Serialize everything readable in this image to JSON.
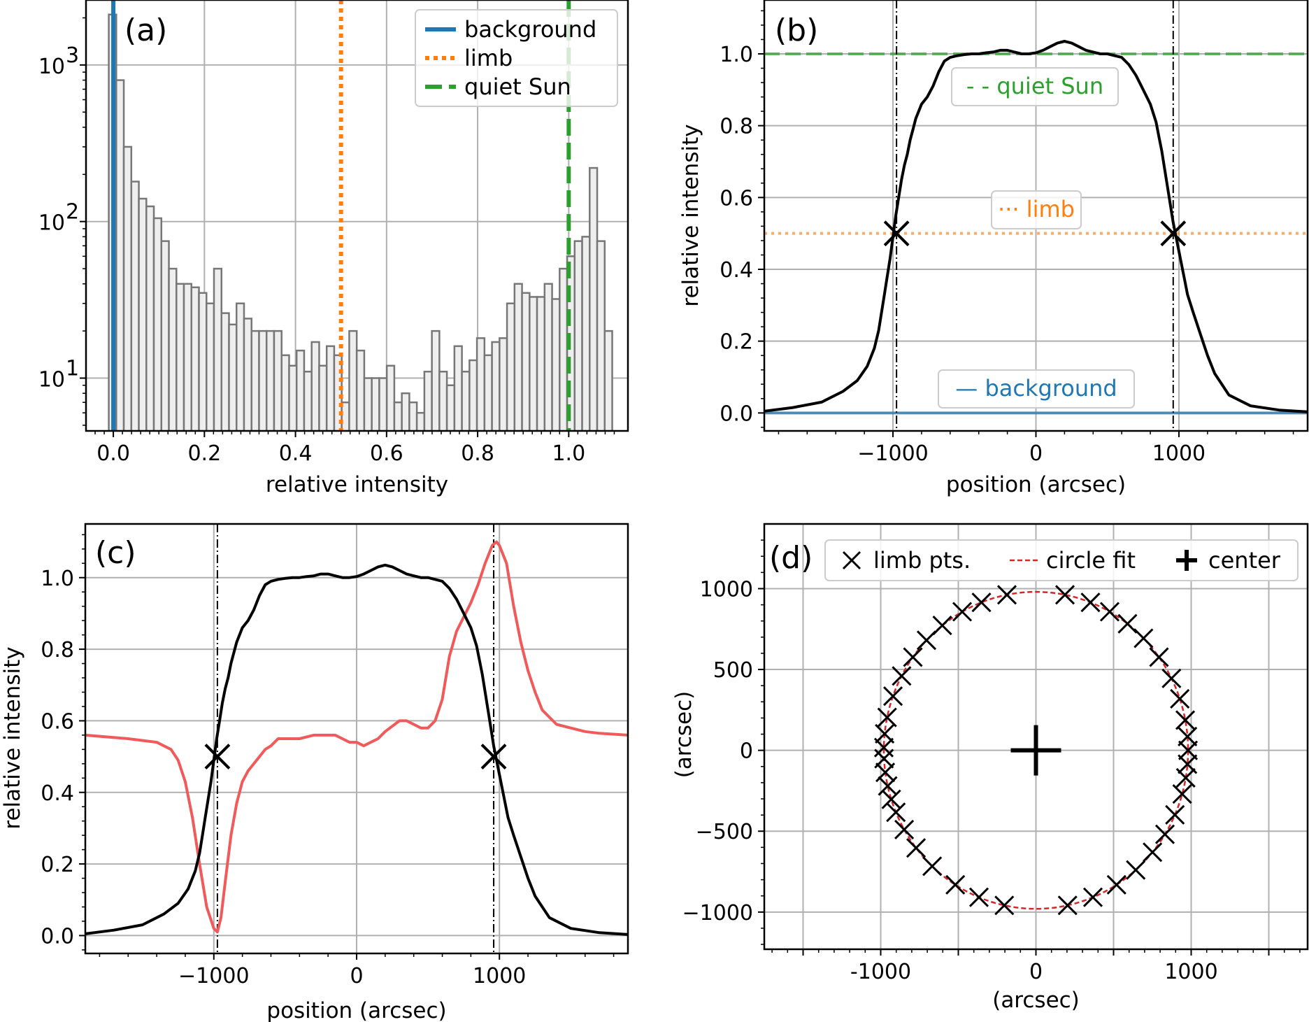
{
  "colors": {
    "background": "#1f77b4",
    "limb": "#ff7f0e",
    "quiet_sun": "#2ca02c",
    "gradient": "#f05a5a",
    "circle_fit": "#d62728",
    "profile": "#000000",
    "hist_fill": "#eeeeee",
    "hist_edge": "#777777"
  },
  "chart_data": [
    {
      "panel": "(a)",
      "type": "bar",
      "subtype": "histogram",
      "xlabel": "relative intensity",
      "ylabel": "",
      "yscale": "log",
      "xlim": [
        -0.06,
        1.13
      ],
      "ylim": [
        4.6,
        2600
      ],
      "xticks": [
        0.0,
        0.2,
        0.4,
        0.6,
        0.8,
        1.0
      ],
      "xtick_labels": [
        "0.0",
        "0.2",
        "0.4",
        "0.6",
        "0.8",
        "1.0"
      ],
      "yticks": [
        10,
        100,
        1000
      ],
      "ytick_labels": [
        "10",
        "10",
        "10"
      ],
      "ytick_exponents": [
        "1",
        "2",
        "3"
      ],
      "bin_start": -0.01,
      "bin_width": 0.0165,
      "counts": [
        2100,
        800,
        300,
        180,
        140,
        125,
        105,
        75,
        50,
        40,
        40,
        38,
        35,
        30,
        50,
        26,
        22,
        30,
        24,
        20,
        20,
        20,
        20,
        14,
        12,
        15,
        11,
        17,
        12,
        16,
        14,
        7,
        20,
        15,
        10,
        10,
        10,
        12,
        7,
        8,
        7,
        6,
        11,
        20,
        11,
        9,
        16,
        11,
        13,
        18,
        14,
        17,
        18,
        30,
        40,
        35,
        33,
        33,
        40,
        32,
        50,
        60,
        75,
        80,
        220,
        75,
        20
      ],
      "vlines": [
        {
          "x": 0.0,
          "label": "background",
          "style": "solid"
        },
        {
          "x": 0.5,
          "label": "limb",
          "style": "dotted"
        },
        {
          "x": 1.0,
          "label": "quiet Sun",
          "style": "dashed"
        }
      ],
      "legend": [
        "background",
        "limb",
        "quiet Sun"
      ],
      "legend_position": "top-right"
    },
    {
      "panel": "(b)",
      "type": "line",
      "xlabel": "position (arcsec)",
      "ylabel": "relative intensity",
      "xlim": [
        -1900,
        1900
      ],
      "ylim": [
        -0.05,
        1.15
      ],
      "xticks": [
        -1000,
        0,
        1000
      ],
      "xtick_labels": [
        "−1000",
        "0",
        "1000"
      ],
      "yticks": [
        0.0,
        0.2,
        0.4,
        0.6,
        0.8,
        1.0
      ],
      "ytick_labels": [
        "0.0",
        "0.2",
        "0.4",
        "0.6",
        "0.8",
        "1.0"
      ],
      "profile_x": [
        -1900,
        -1700,
        -1500,
        -1350,
        -1250,
        -1180,
        -1130,
        -1100,
        -1080,
        -1060,
        -1040,
        -1020,
        -1000,
        -980,
        -960,
        -940,
        -920,
        -900,
        -880,
        -860,
        -840,
        -800,
        -760,
        -720,
        -680,
        -640,
        -600,
        -550,
        -500,
        -450,
        -400,
        -350,
        -300,
        -250,
        -200,
        -150,
        -100,
        -50,
        0,
        50,
        100,
        150,
        200,
        250,
        300,
        350,
        400,
        450,
        500,
        550,
        600,
        650,
        700,
        750,
        800,
        840,
        860,
        880,
        900,
        920,
        940,
        960,
        980,
        1000,
        1020,
        1040,
        1060,
        1100,
        1150,
        1200,
        1250,
        1350,
        1500,
        1700,
        1900
      ],
      "profile_y": [
        0.005,
        0.015,
        0.03,
        0.06,
        0.09,
        0.13,
        0.18,
        0.23,
        0.28,
        0.33,
        0.38,
        0.43,
        0.49,
        0.55,
        0.6,
        0.65,
        0.69,
        0.72,
        0.76,
        0.79,
        0.82,
        0.86,
        0.88,
        0.91,
        0.95,
        0.98,
        0.99,
        0.995,
        0.998,
        1.0,
        1.0,
        1.003,
        1.005,
        1.01,
        1.01,
        1.005,
        1.0,
        1.0,
        1.003,
        1.01,
        1.02,
        1.03,
        1.035,
        1.03,
        1.02,
        1.01,
        1.005,
        1.0,
        1.0,
        0.995,
        0.99,
        0.97,
        0.94,
        0.9,
        0.86,
        0.81,
        0.77,
        0.73,
        0.68,
        0.63,
        0.58,
        0.53,
        0.49,
        0.45,
        0.41,
        0.37,
        0.33,
        0.28,
        0.22,
        0.16,
        0.11,
        0.05,
        0.02,
        0.008,
        0.003
      ],
      "hlines": [
        {
          "y": 0.0,
          "label": "background",
          "style": "solid"
        },
        {
          "y": 0.5,
          "label": "limb",
          "style": "dotted"
        },
        {
          "y": 1.0,
          "label": "quiet Sun",
          "style": "dashed"
        }
      ],
      "vlines": [
        -975,
        960
      ],
      "limb_points": [
        [
          -975,
          0.5
        ],
        [
          960,
          0.5
        ]
      ],
      "annotations": [
        "- - quiet Sun",
        "··· limb",
        "— background"
      ]
    },
    {
      "panel": "(c)",
      "type": "line",
      "xlabel": "position (arcsec)",
      "ylabel": "relative intensity",
      "xlim": [
        -1900,
        1900
      ],
      "ylim": [
        -0.05,
        1.15
      ],
      "xticks": [
        -1000,
        0,
        1000
      ],
      "xtick_labels": [
        "−1000",
        "0",
        "1000"
      ],
      "yticks": [
        0.0,
        0.2,
        0.4,
        0.6,
        0.8,
        1.0
      ],
      "ytick_labels": [
        "0.0",
        "0.2",
        "0.4",
        "0.6",
        "0.8",
        "1.0"
      ],
      "profile_x": [
        -1900,
        -1700,
        -1500,
        -1350,
        -1250,
        -1180,
        -1130,
        -1100,
        -1080,
        -1060,
        -1040,
        -1020,
        -1000,
        -980,
        -960,
        -940,
        -920,
        -900,
        -880,
        -860,
        -840,
        -800,
        -760,
        -720,
        -680,
        -640,
        -600,
        -550,
        -500,
        -450,
        -400,
        -350,
        -300,
        -250,
        -200,
        -150,
        -100,
        -50,
        0,
        50,
        100,
        150,
        200,
        250,
        300,
        350,
        400,
        450,
        500,
        550,
        600,
        650,
        700,
        750,
        800,
        840,
        860,
        880,
        900,
        920,
        940,
        960,
        980,
        1000,
        1020,
        1040,
        1060,
        1100,
        1150,
        1200,
        1250,
        1350,
        1500,
        1700,
        1900
      ],
      "profile_y": [
        0.005,
        0.015,
        0.03,
        0.06,
        0.09,
        0.13,
        0.18,
        0.23,
        0.28,
        0.33,
        0.38,
        0.43,
        0.49,
        0.55,
        0.6,
        0.65,
        0.69,
        0.72,
        0.76,
        0.79,
        0.82,
        0.86,
        0.88,
        0.91,
        0.95,
        0.98,
        0.99,
        0.995,
        0.998,
        1.0,
        1.0,
        1.003,
        1.005,
        1.01,
        1.01,
        1.005,
        1.0,
        1.0,
        1.003,
        1.01,
        1.02,
        1.03,
        1.035,
        1.03,
        1.02,
        1.01,
        1.005,
        1.0,
        1.0,
        0.995,
        0.99,
        0.97,
        0.94,
        0.9,
        0.86,
        0.81,
        0.77,
        0.73,
        0.68,
        0.63,
        0.58,
        0.53,
        0.49,
        0.45,
        0.41,
        0.37,
        0.33,
        0.28,
        0.22,
        0.16,
        0.11,
        0.05,
        0.02,
        0.008,
        0.003
      ],
      "gradient_x": [
        -1900,
        -1600,
        -1400,
        -1300,
        -1250,
        -1200,
        -1150,
        -1100,
        -1050,
        -1000,
        -975,
        -950,
        -920,
        -880,
        -840,
        -800,
        -760,
        -720,
        -680,
        -640,
        -600,
        -550,
        -500,
        -400,
        -300,
        -200,
        -150,
        -100,
        -50,
        0,
        50,
        100,
        150,
        200,
        300,
        350,
        400,
        450,
        500,
        550,
        600,
        650,
        700,
        750,
        800,
        850,
        900,
        950,
        980,
        1000,
        1050,
        1100,
        1150,
        1200,
        1250,
        1300,
        1400,
        1500,
        1600,
        1700,
        1900
      ],
      "gradient_y": [
        0.56,
        0.55,
        0.54,
        0.52,
        0.49,
        0.43,
        0.33,
        0.2,
        0.08,
        0.02,
        0.01,
        0.05,
        0.15,
        0.28,
        0.37,
        0.43,
        0.46,
        0.48,
        0.5,
        0.52,
        0.53,
        0.55,
        0.55,
        0.55,
        0.56,
        0.56,
        0.56,
        0.55,
        0.54,
        0.54,
        0.53,
        0.54,
        0.55,
        0.57,
        0.6,
        0.6,
        0.59,
        0.58,
        0.58,
        0.6,
        0.66,
        0.78,
        0.85,
        0.89,
        0.93,
        0.98,
        1.04,
        1.09,
        1.1,
        1.09,
        1.04,
        0.92,
        0.82,
        0.74,
        0.68,
        0.63,
        0.59,
        0.58,
        0.57,
        0.565,
        0.56
      ],
      "vlines": [
        -975,
        960
      ],
      "limb_points": [
        [
          -975,
          0.5
        ],
        [
          960,
          0.5
        ]
      ]
    },
    {
      "panel": "(d)",
      "type": "scatter",
      "xlabel": "(arcsec)",
      "ylabel": "(arcsec)",
      "xlim": [
        -1750,
        1750
      ],
      "ylim": [
        -1230,
        1400
      ],
      "xticks": [
        -1000,
        0,
        1000
      ],
      "xtick_labels": [
        "-1000",
        "0",
        "1000"
      ],
      "yticks": [
        -1000,
        -500,
        0,
        500,
        1000
      ],
      "ytick_labels": [
        "−1000",
        "−500",
        "0",
        "500",
        "1000"
      ],
      "circle_fit": {
        "cx": 0,
        "cy": 0,
        "r": 980
      },
      "center": [
        0,
        0
      ],
      "limb_points_angles_deg": [
        11,
        19,
        27,
        36,
        45,
        53,
        61,
        69,
        79,
        101,
        111,
        119,
        128,
        136,
        144,
        152,
        160,
        168,
        174,
        179,
        183,
        188,
        193,
        198,
        203,
        210,
        218,
        227,
        238,
        248,
        258,
        282,
        292,
        302,
        311,
        320,
        328,
        336,
        344,
        350,
        355,
        0,
        5
      ],
      "legend": [
        "limb pts.",
        "circle fit",
        "center"
      ],
      "legend_position": "top"
    }
  ]
}
